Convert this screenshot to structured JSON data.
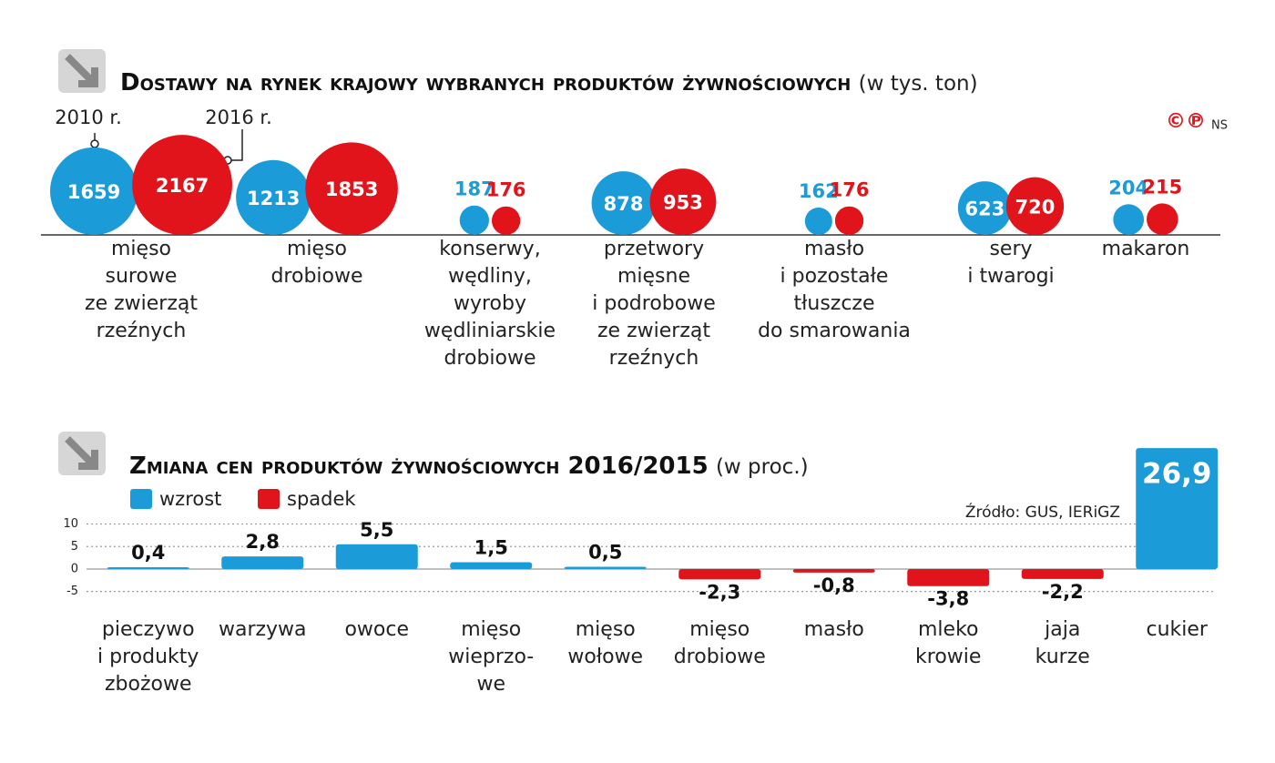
{
  "chart_data": [
    {
      "type": "bubble",
      "title": "Dostawy na rynek krajowy wybranych produktów żywnościowych",
      "unit": "(w tys. ton)",
      "credit_marks": "©℗",
      "credit": "NS",
      "categories": [
        "mięso\nsurowe\nze zwierząt\nrzeźnych",
        "mięso\ndrobiowe",
        "konserwy,\nwędliny,\nwyroby\nwędliniarskie\ndrobiowe",
        "przetwory\nmięsne\ni podrobowe\nze zwierząt\nrzeźnych",
        "masło\ni pozostałe\ntłuszcze\ndo smarowania",
        "sery\ni twarogi",
        "makaron"
      ],
      "series": [
        {
          "name": "2010 r.",
          "color": "#1b9bd8",
          "values": [
            1659,
            1213,
            187,
            878,
            162,
            623,
            204
          ]
        },
        {
          "name": "2016 r.",
          "color": "#e2141b",
          "values": [
            2167,
            1853,
            176,
            953,
            176,
            720,
            215
          ]
        }
      ]
    },
    {
      "type": "bar",
      "title": "Zmiana cen produktów żywnościowych 2016/2015",
      "unit": "(w proc.)",
      "source": "Źródło: GUS, IERiGZ",
      "legend": [
        {
          "name": "wzrost",
          "color": "#1b9bd8"
        },
        {
          "name": "spadek",
          "color": "#e2141b"
        }
      ],
      "categories": [
        "pieczywo\ni produkty\nzbożowe",
        "warzywa",
        "owoce",
        "mięso\nwieprzo-\nwe",
        "mięso\nwołowe",
        "mięso\ndrobiowe",
        "masło",
        "mleko\nkrowie",
        "jaja\nkurze",
        "cukier"
      ],
      "values": [
        0.4,
        2.8,
        5.5,
        1.5,
        0.5,
        -2.3,
        -0.8,
        -3.8,
        -2.2,
        26.9
      ],
      "value_labels": [
        "0,4",
        "2,8",
        "5,5",
        "1,5",
        "0,5",
        "-2,3",
        "-0,8",
        "-3,8",
        "-2,2",
        "26,9"
      ],
      "ylim": [
        -7.5,
        28
      ],
      "yticks": [
        10,
        5,
        0,
        -5
      ],
      "grid": true
    }
  ]
}
